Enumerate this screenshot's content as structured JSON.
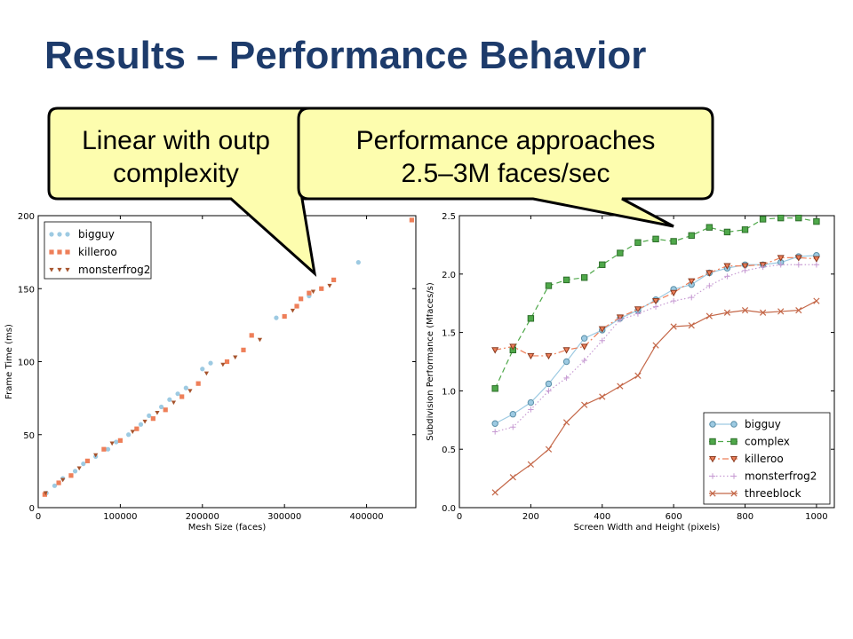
{
  "slide": {
    "title": "Results – Performance Behavior"
  },
  "callouts": [
    {
      "lines": [
        "Linear with outp",
        "complexity"
      ]
    },
    {
      "lines": [
        "Performance approaches",
        "2.5–3M faces/sec"
      ]
    }
  ],
  "colors": {
    "title": "#1d3b6b",
    "callout_fill": "#fdfdae",
    "bigguy": "#9dcae2",
    "killeroo": "#ee7f59",
    "monsterfrog2": "#a6532c",
    "complex": "#4fa84a",
    "threeblock": "#c46748",
    "frog_line": "#c79bd3"
  },
  "chart_data": [
    {
      "type": "scatter",
      "xlabel": "Mesh Size (faces)",
      "ylabel": "Frame Time (ms)",
      "xlim": [
        0,
        460000
      ],
      "ylim": [
        0,
        200
      ],
      "xticks": [
        0,
        100000,
        200000,
        300000,
        400000
      ],
      "xtick_labels": [
        "0",
        "100000",
        "200000",
        "300000",
        "400000"
      ],
      "yticks": [
        0,
        50,
        100,
        150,
        200
      ],
      "ytick_labels": [
        "0",
        "50",
        "100",
        "150",
        "200"
      ],
      "grid": false,
      "legend": "top-left",
      "series": [
        {
          "name": "bigguy",
          "marker": "circle",
          "points": [
            [
              10000,
              10
            ],
            [
              20000,
              15
            ],
            [
              30000,
              20
            ],
            [
              45000,
              25
            ],
            [
              55000,
              30
            ],
            [
              70000,
              35
            ],
            [
              85000,
              40
            ],
            [
              95000,
              45
            ],
            [
              110000,
              50
            ],
            [
              125000,
              57
            ],
            [
              135000,
              63
            ],
            [
              150000,
              69
            ],
            [
              160000,
              74
            ],
            [
              170000,
              78
            ],
            [
              180000,
              82
            ],
            [
              200000,
              95
            ],
            [
              210000,
              99
            ],
            [
              290000,
              130
            ],
            [
              330000,
              145
            ],
            [
              390000,
              168
            ]
          ]
        },
        {
          "name": "killeroo",
          "marker": "square",
          "points": [
            [
              8000,
              9
            ],
            [
              25000,
              17
            ],
            [
              40000,
              22
            ],
            [
              60000,
              32
            ],
            [
              80000,
              40
            ],
            [
              100000,
              46
            ],
            [
              120000,
              54
            ],
            [
              140000,
              61
            ],
            [
              155000,
              67
            ],
            [
              175000,
              76
            ],
            [
              195000,
              85
            ],
            [
              230000,
              100
            ],
            [
              250000,
              108
            ],
            [
              260000,
              118
            ],
            [
              300000,
              131
            ],
            [
              315000,
              138
            ],
            [
              320000,
              143
            ],
            [
              330000,
              147
            ],
            [
              345000,
              150
            ],
            [
              360000,
              156
            ],
            [
              455000,
              197
            ]
          ]
        },
        {
          "name": "monsterfrog2",
          "marker": "triangle_down",
          "points": [
            [
              9000,
              10
            ],
            [
              30000,
              19
            ],
            [
              50000,
              27
            ],
            [
              70000,
              36
            ],
            [
              90000,
              44
            ],
            [
              115000,
              52
            ],
            [
              130000,
              59
            ],
            [
              145000,
              65
            ],
            [
              165000,
              72
            ],
            [
              185000,
              80
            ],
            [
              205000,
              92
            ],
            [
              225000,
              98
            ],
            [
              240000,
              103
            ],
            [
              270000,
              115
            ],
            [
              310000,
              135
            ],
            [
              335000,
              148
            ],
            [
              355000,
              152
            ]
          ]
        }
      ]
    },
    {
      "type": "line",
      "xlabel": "Screen Width and Height (pixels)",
      "ylabel": "Subdivision Performance (Mfaces/s)",
      "xlim": [
        0,
        1050
      ],
      "ylim": [
        0,
        2.5
      ],
      "xticks": [
        0,
        200,
        400,
        600,
        800,
        1000
      ],
      "xtick_labels": [
        "0",
        "200",
        "400",
        "600",
        "800",
        "1000"
      ],
      "yticks": [
        0,
        0.5,
        1.0,
        1.5,
        2.0,
        2.5
      ],
      "ytick_labels": [
        "0.0",
        "0.5",
        "1.0",
        "1.5",
        "2.0",
        "2.5"
      ],
      "grid": false,
      "legend": "bottom-right",
      "x": [
        100,
        150,
        200,
        250,
        300,
        350,
        400,
        450,
        500,
        550,
        600,
        650,
        700,
        750,
        800,
        850,
        900,
        950,
        1000
      ],
      "series": [
        {
          "name": "bigguy",
          "marker": "circle",
          "dash": "solid",
          "values": [
            0.72,
            0.8,
            0.9,
            1.06,
            1.25,
            1.45,
            1.52,
            1.62,
            1.69,
            1.78,
            1.87,
            1.91,
            2.01,
            2.05,
            2.08,
            2.08,
            2.1,
            2.15,
            2.16
          ]
        },
        {
          "name": "complex",
          "marker": "square",
          "dash": "dashed",
          "values": [
            1.02,
            1.35,
            1.62,
            1.9,
            1.95,
            1.97,
            2.08,
            2.18,
            2.27,
            2.3,
            2.28,
            2.33,
            2.4,
            2.36,
            2.38,
            2.47,
            2.48,
            2.48,
            2.45
          ]
        },
        {
          "name": "killeroo",
          "marker": "triangle_down",
          "dash": "dashdot",
          "values": [
            1.35,
            1.38,
            1.3,
            1.3,
            1.35,
            1.38,
            1.53,
            1.63,
            1.7,
            1.77,
            1.84,
            1.94,
            2.01,
            2.07,
            2.07,
            2.08,
            2.14,
            2.14,
            2.13
          ]
        },
        {
          "name": "monsterfrog2",
          "marker": "plus",
          "dash": "dotted",
          "values": [
            0.65,
            0.69,
            0.84,
            1.0,
            1.11,
            1.26,
            1.43,
            1.61,
            1.66,
            1.72,
            1.77,
            1.8,
            1.9,
            1.98,
            2.03,
            2.06,
            2.08,
            2.08,
            2.08
          ]
        },
        {
          "name": "threeblock",
          "marker": "x",
          "dash": "solid",
          "values": [
            0.13,
            0.26,
            0.37,
            0.5,
            0.73,
            0.88,
            0.95,
            1.04,
            1.13,
            1.39,
            1.55,
            1.56,
            1.64,
            1.67,
            1.69,
            1.67,
            1.68,
            1.69,
            1.77
          ]
        }
      ]
    }
  ]
}
